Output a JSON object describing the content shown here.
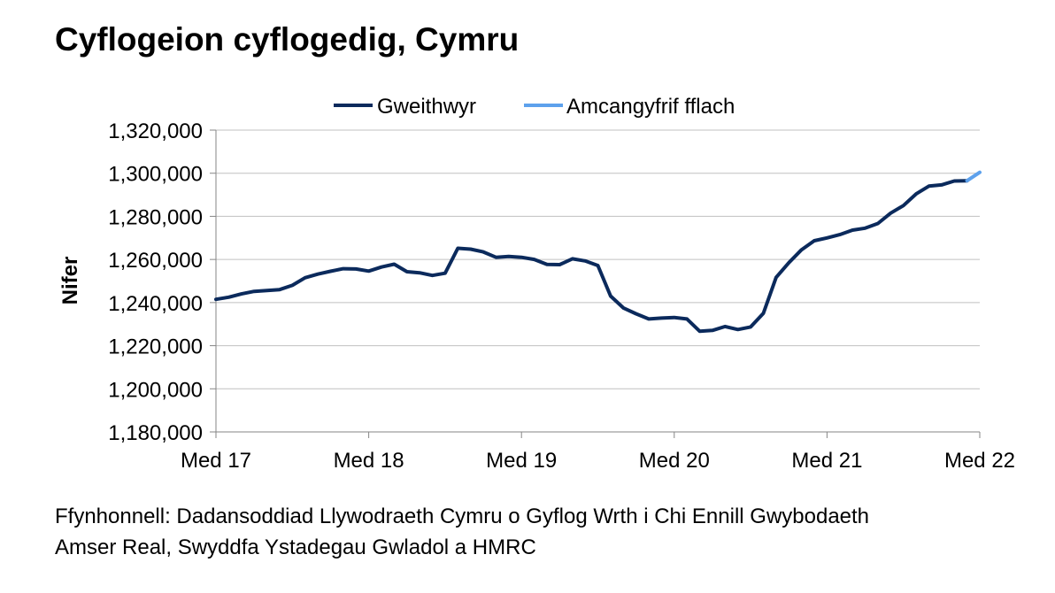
{
  "title": "Cyflogeion cyflogedig, Cymru",
  "source_lines": [
    "Ffynhonnell: Dadansoddiad Llywodraeth Cymru o Gyflog Wrth i Chi Ennill Gwybodaeth",
    "Amser Real, Swyddfa Ystadegau Gwladol a HMRC"
  ],
  "chart_data": {
    "type": "line",
    "title": "Cyflogeion cyflogedig, Cymru",
    "xlabel": "",
    "ylabel": "Nifer",
    "ylim": [
      1180000,
      1320000
    ],
    "yticks": [
      1180000,
      1200000,
      1220000,
      1240000,
      1260000,
      1280000,
      1300000,
      1320000
    ],
    "ytick_labels": [
      "1,180,000",
      "1,200,000",
      "1,220,000",
      "1,240,000",
      "1,260,000",
      "1,280,000",
      "1,300,000",
      "1,320,000"
    ],
    "xticks": [
      "Med 17",
      "Med 18",
      "Med 19",
      "Med 20",
      "Med 21",
      "Med 22"
    ],
    "grid": true,
    "legend_position": "top-center",
    "series": [
      {
        "name": "Gweithwyr",
        "color": "#0b2a5c",
        "values": [
          1241500,
          1242500,
          1244000,
          1245200,
          1245600,
          1246000,
          1248000,
          1251500,
          1253200,
          1254500,
          1255700,
          1255600,
          1254600,
          1256500,
          1257800,
          1254300,
          1253800,
          1252600,
          1253600,
          1265200,
          1264800,
          1263500,
          1261000,
          1261400,
          1261000,
          1260000,
          1257700,
          1257600,
          1260300,
          1259300,
          1257200,
          1243000,
          1237500,
          1234800,
          1232400,
          1232800,
          1233100,
          1232400,
          1226700,
          1227100,
          1228900,
          1227500,
          1228700,
          1235000,
          1251700,
          1258500,
          1264500,
          1268700,
          1270000,
          1271500,
          1273600,
          1274500,
          1276700,
          1281500,
          1285000,
          1290400,
          1294000,
          1294600,
          1296400,
          1296500
        ]
      },
      {
        "name": "Amcangyfrif fflach",
        "color": "#5da1ec",
        "values": [
          1296500,
          1300400
        ]
      }
    ]
  }
}
